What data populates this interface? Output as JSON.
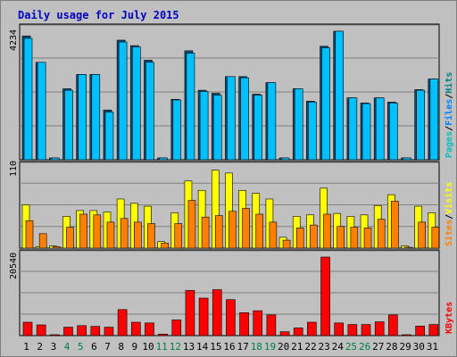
{
  "title": "Daily usage for July 2015",
  "colors": {
    "hits": "#00c0ff",
    "files": "#00c0ff",
    "pages": "#00c0ff",
    "visits": "#ffff00",
    "sites": "#ff8000",
    "kbytes": "#ff0000",
    "weekend_label": "#008040",
    "weekday_label": "#000000"
  },
  "chart_data": [
    {
      "type": "bar",
      "panel": "hits-files-pages",
      "ymax_label": "4234",
      "ylim": [
        0,
        4234
      ],
      "legend": [
        "Pages",
        "/",
        "Files",
        "/",
        "Hits"
      ],
      "legend_colors": [
        "#00c0c0",
        "#000000",
        "#0080ff",
        "#000000",
        "#008080"
      ],
      "series": [
        {
          "name": "Hits",
          "values": [
            4080,
            3210,
            60,
            2340,
            2810,
            2810,
            1640,
            3940,
            3760,
            3280,
            60,
            1990,
            3590,
            2290,
            2190,
            2740,
            2740,
            2160,
            2540,
            60,
            2340,
            1930,
            3740,
            4234,
            2040,
            1870,
            2040,
            1900,
            60,
            2310,
            2660
          ]
        },
        {
          "name": "Files",
          "values": [
            4000,
            3210,
            60,
            2290,
            2810,
            2810,
            1570,
            3880,
            3720,
            3210,
            60,
            1970,
            3510,
            2250,
            2130,
            2740,
            2700,
            2130,
            2540,
            60,
            2340,
            1900,
            3690,
            4234,
            2040,
            1850,
            2040,
            1870,
            60,
            2290,
            2660
          ]
        },
        {
          "name": "Pages",
          "values": [
            0,
            0,
            0,
            0,
            0,
            0,
            0,
            0,
            0,
            0,
            0,
            0,
            0,
            0,
            0,
            0,
            0,
            0,
            0,
            0,
            0,
            0,
            0,
            0,
            0,
            0,
            0,
            0,
            0,
            0,
            0
          ]
        }
      ]
    },
    {
      "type": "bar",
      "panel": "visits-sites",
      "ymax_label": "110",
      "ylim": [
        0,
        110
      ],
      "legend": [
        "Sites",
        "/",
        "Visits"
      ],
      "legend_colors": [
        "#ff8000",
        "#000000",
        "#ffff00"
      ],
      "series": [
        {
          "name": "Visits",
          "values": [
            60,
            2,
            3,
            44,
            52,
            52,
            50,
            68,
            62,
            58,
            9,
            49,
            93,
            80,
            108,
            104,
            80,
            76,
            68,
            15,
            44,
            46,
            83,
            48,
            44,
            46,
            59,
            74,
            3,
            58,
            49
          ]
        },
        {
          "name": "Sites",
          "values": [
            38,
            20,
            2,
            29,
            47,
            46,
            36,
            41,
            36,
            34,
            7,
            34,
            66,
            43,
            45,
            51,
            55,
            47,
            36,
            11,
            28,
            32,
            47,
            30,
            29,
            28,
            40,
            65,
            1,
            36,
            29
          ]
        }
      ]
    },
    {
      "type": "bar",
      "panel": "kbytes",
      "ymax_label": "20540",
      "ylim": [
        0,
        20540
      ],
      "legend": [
        "KBytes"
      ],
      "legend_colors": [
        "#ff0000"
      ],
      "series": [
        {
          "name": "KBytes",
          "values": [
            3500,
            2800,
            100,
            2200,
            2600,
            2400,
            2200,
            6800,
            3500,
            3300,
            400,
            4100,
            11800,
            9800,
            12000,
            9400,
            6000,
            6500,
            5400,
            1000,
            2000,
            3500,
            20540,
            3300,
            2900,
            2900,
            3600,
            5400,
            200,
            2500,
            2900
          ]
        }
      ]
    }
  ],
  "x_labels": [
    {
      "day": "1",
      "weekend": false
    },
    {
      "day": "2",
      "weekend": false
    },
    {
      "day": "3",
      "weekend": false
    },
    {
      "day": "4",
      "weekend": true
    },
    {
      "day": "5",
      "weekend": true
    },
    {
      "day": "6",
      "weekend": false
    },
    {
      "day": "7",
      "weekend": false
    },
    {
      "day": "8",
      "weekend": false
    },
    {
      "day": "9",
      "weekend": false
    },
    {
      "day": "10",
      "weekend": false
    },
    {
      "day": "11",
      "weekend": true
    },
    {
      "day": "12",
      "weekend": true
    },
    {
      "day": "13",
      "weekend": false
    },
    {
      "day": "14",
      "weekend": false
    },
    {
      "day": "15",
      "weekend": false
    },
    {
      "day": "16",
      "weekend": false
    },
    {
      "day": "17",
      "weekend": false
    },
    {
      "day": "18",
      "weekend": true
    },
    {
      "day": "19",
      "weekend": true
    },
    {
      "day": "20",
      "weekend": false
    },
    {
      "day": "21",
      "weekend": false
    },
    {
      "day": "22",
      "weekend": false
    },
    {
      "day": "23",
      "weekend": false
    },
    {
      "day": "24",
      "weekend": false
    },
    {
      "day": "25",
      "weekend": true
    },
    {
      "day": "26",
      "weekend": true
    },
    {
      "day": "27",
      "weekend": false
    },
    {
      "day": "28",
      "weekend": false
    },
    {
      "day": "29",
      "weekend": false
    },
    {
      "day": "30",
      "weekend": false
    },
    {
      "day": "31",
      "weekend": false
    }
  ]
}
